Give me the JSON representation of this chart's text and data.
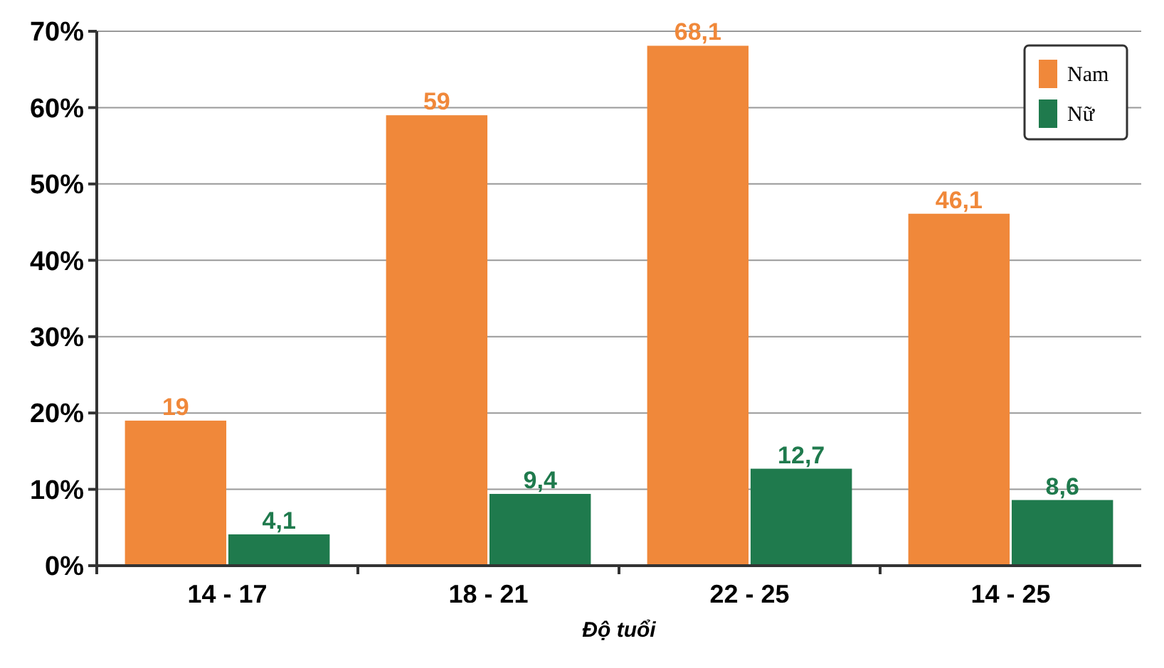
{
  "chart_data": {
    "type": "bar",
    "xlabel": "Độ tuổi",
    "categories": [
      "14 - 17",
      "18 - 21",
      "22 - 25",
      "14 - 25"
    ],
    "series": [
      {
        "name": "Nam",
        "color": "#f0883a",
        "values": [
          19,
          59,
          68.1,
          46.1
        ],
        "value_labels": [
          "19",
          "59",
          "68,1",
          "46,1"
        ]
      },
      {
        "name": "Nữ",
        "color": "#1f7a4d",
        "values": [
          4.1,
          9.4,
          12.7,
          8.6
        ],
        "value_labels": [
          "4,1",
          "9,4",
          "12,7",
          "8,6"
        ]
      }
    ],
    "ylim": [
      0,
      70
    ],
    "yticks": [
      {
        "value": 0,
        "label": "0%"
      },
      {
        "value": 10,
        "label": "10%"
      },
      {
        "value": 20,
        "label": "20%"
      },
      {
        "value": 30,
        "label": "30%"
      },
      {
        "value": 40,
        "label": "40%"
      },
      {
        "value": 50,
        "label": "50%"
      },
      {
        "value": 60,
        "label": "60%"
      },
      {
        "value": 70,
        "label": "70%"
      }
    ],
    "grid": "y",
    "legend": "top right"
  }
}
